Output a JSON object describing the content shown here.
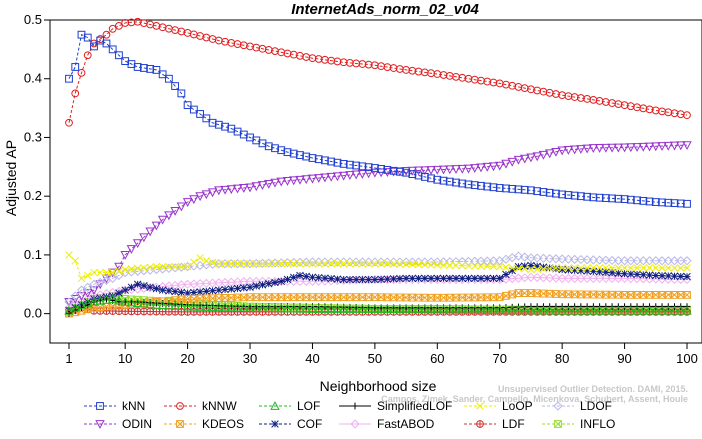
{
  "chart_data": {
    "type": "line",
    "title": "InternetAds_norm_02_v04",
    "xlabel": "Neighborhood size",
    "ylabel": "Adjusted AP",
    "xlim": [
      1,
      100
    ],
    "ylim": [
      -0.05,
      0.5
    ],
    "xticks": [
      1,
      10,
      20,
      30,
      40,
      50,
      60,
      70,
      80,
      90,
      100
    ],
    "xtick_labels": [
      "1",
      "10",
      "20",
      "30",
      "40",
      "50",
      "60",
      "70",
      "80",
      "90",
      "100"
    ],
    "yticks": [
      0.0,
      0.1,
      0.2,
      0.3,
      0.4,
      0.5
    ],
    "ytick_labels": [
      "0.0",
      "0.1",
      "0.2",
      "0.3",
      "0.4",
      "0.5"
    ],
    "grid": false,
    "legend_position": "bottom",
    "watermark": "Campos, Zimek, Sander, Campello, Micenková, Schubert, Assent, Houle: On the Evaluation of Unsupervised Outlier Detection. DAMI, 2015.",
    "watermark_line1": "Unsupervised Outlier Detection. DAMI, 2015.",
    "watermark_line2": "Campos, Zimek, Sander, Campello, Micenkova, Schubert, Assent, Houle",
    "series": [
      {
        "name": "kNN",
        "color": "#1f3fd0",
        "marker": "square",
        "dashed": true,
        "points": [
          [
            1,
            0.4
          ],
          [
            2,
            0.42
          ],
          [
            3,
            0.475
          ],
          [
            4,
            0.47
          ],
          [
            5,
            0.455
          ],
          [
            6,
            0.465
          ],
          [
            7,
            0.46
          ],
          [
            8,
            0.45
          ],
          [
            9,
            0.44
          ],
          [
            10,
            0.43
          ],
          [
            12,
            0.42
          ],
          [
            15,
            0.415
          ],
          [
            17,
            0.4
          ],
          [
            19,
            0.375
          ],
          [
            20,
            0.355
          ],
          [
            22,
            0.34
          ],
          [
            24,
            0.325
          ],
          [
            27,
            0.315
          ],
          [
            30,
            0.3
          ],
          [
            33,
            0.285
          ],
          [
            36,
            0.275
          ],
          [
            40,
            0.265
          ],
          [
            45,
            0.255
          ],
          [
            50,
            0.248
          ],
          [
            55,
            0.24
          ],
          [
            60,
            0.228
          ],
          [
            65,
            0.22
          ],
          [
            70,
            0.214
          ],
          [
            75,
            0.21
          ],
          [
            80,
            0.203
          ],
          [
            85,
            0.198
          ],
          [
            90,
            0.195
          ],
          [
            95,
            0.19
          ],
          [
            100,
            0.187
          ]
        ]
      },
      {
        "name": "kNNW",
        "color": "#e02020",
        "marker": "circle",
        "dashed": true,
        "points": [
          [
            1,
            0.325
          ],
          [
            2,
            0.375
          ],
          [
            3,
            0.41
          ],
          [
            4,
            0.44
          ],
          [
            5,
            0.46
          ],
          [
            7,
            0.475
          ],
          [
            8,
            0.485
          ],
          [
            9,
            0.49
          ],
          [
            10,
            0.495
          ],
          [
            12,
            0.497
          ],
          [
            15,
            0.49
          ],
          [
            20,
            0.478
          ],
          [
            25,
            0.465
          ],
          [
            30,
            0.455
          ],
          [
            35,
            0.445
          ],
          [
            40,
            0.435
          ],
          [
            45,
            0.428
          ],
          [
            50,
            0.423
          ],
          [
            55,
            0.415
          ],
          [
            60,
            0.408
          ],
          [
            65,
            0.4
          ],
          [
            70,
            0.392
          ],
          [
            75,
            0.382
          ],
          [
            80,
            0.372
          ],
          [
            85,
            0.364
          ],
          [
            90,
            0.355
          ],
          [
            95,
            0.346
          ],
          [
            100,
            0.338
          ]
        ]
      },
      {
        "name": "LOF",
        "color": "#22bb22",
        "marker": "triangle",
        "dashed": true,
        "points": [
          [
            1,
            0.005
          ],
          [
            3,
            0.015
          ],
          [
            5,
            0.02
          ],
          [
            8,
            0.025
          ],
          [
            10,
            0.02
          ],
          [
            15,
            0.015
          ],
          [
            20,
            0.012
          ],
          [
            30,
            0.01
          ],
          [
            40,
            0.008
          ],
          [
            50,
            0.008
          ],
          [
            60,
            0.007
          ],
          [
            70,
            0.006
          ],
          [
            80,
            0.005
          ],
          [
            90,
            0.005
          ],
          [
            100,
            0.005
          ]
        ]
      },
      {
        "name": "SimplifiedLOF",
        "color": "#000000",
        "marker": "plus",
        "dashed": false,
        "points": [
          [
            1,
            0.0
          ],
          [
            3,
            0.01
          ],
          [
            5,
            0.02
          ],
          [
            7,
            0.025
          ],
          [
            9,
            0.02
          ],
          [
            12,
            0.02
          ],
          [
            15,
            0.018
          ],
          [
            20,
            0.015
          ],
          [
            30,
            0.012
          ],
          [
            40,
            0.012
          ],
          [
            50,
            0.01
          ],
          [
            60,
            0.01
          ],
          [
            70,
            0.01
          ],
          [
            75,
            0.012
          ],
          [
            80,
            0.012
          ],
          [
            90,
            0.012
          ],
          [
            100,
            0.012
          ]
        ]
      },
      {
        "name": "LoOP",
        "color": "#eeee00",
        "marker": "x",
        "dashed": true,
        "points": [
          [
            1,
            0.1
          ],
          [
            2,
            0.09
          ],
          [
            3,
            0.06
          ],
          [
            5,
            0.07
          ],
          [
            8,
            0.07
          ],
          [
            10,
            0.075
          ],
          [
            15,
            0.08
          ],
          [
            20,
            0.08
          ],
          [
            22,
            0.095
          ],
          [
            23,
            0.09
          ],
          [
            25,
            0.085
          ],
          [
            30,
            0.085
          ],
          [
            40,
            0.085
          ],
          [
            50,
            0.085
          ],
          [
            60,
            0.083
          ],
          [
            70,
            0.08
          ],
          [
            75,
            0.075
          ],
          [
            80,
            0.078
          ],
          [
            90,
            0.078
          ],
          [
            100,
            0.078
          ]
        ]
      },
      {
        "name": "LDOF",
        "color": "#b8b8e8",
        "marker": "diamond",
        "dashed": true,
        "points": [
          [
            1,
            0.02
          ],
          [
            3,
            0.04
          ],
          [
            5,
            0.05
          ],
          [
            8,
            0.06
          ],
          [
            10,
            0.07
          ],
          [
            15,
            0.075
          ],
          [
            20,
            0.08
          ],
          [
            25,
            0.085
          ],
          [
            30,
            0.085
          ],
          [
            40,
            0.088
          ],
          [
            50,
            0.088
          ],
          [
            60,
            0.088
          ],
          [
            70,
            0.09
          ],
          [
            73,
            0.098
          ],
          [
            75,
            0.095
          ],
          [
            80,
            0.093
          ],
          [
            90,
            0.09
          ],
          [
            100,
            0.09
          ]
        ]
      },
      {
        "name": "ODIN",
        "color": "#9933cc",
        "marker": "triangle-down",
        "dashed": true,
        "points": [
          [
            1,
            0.02
          ],
          [
            3,
            0.03
          ],
          [
            5,
            0.04
          ],
          [
            7,
            0.06
          ],
          [
            9,
            0.08
          ],
          [
            10,
            0.1
          ],
          [
            12,
            0.12
          ],
          [
            14,
            0.14
          ],
          [
            16,
            0.16
          ],
          [
            18,
            0.175
          ],
          [
            20,
            0.19
          ],
          [
            22,
            0.2
          ],
          [
            25,
            0.21
          ],
          [
            30,
            0.215
          ],
          [
            35,
            0.225
          ],
          [
            40,
            0.23
          ],
          [
            45,
            0.235
          ],
          [
            50,
            0.24
          ],
          [
            55,
            0.243
          ],
          [
            60,
            0.245
          ],
          [
            65,
            0.247
          ],
          [
            70,
            0.252
          ],
          [
            73,
            0.262
          ],
          [
            76,
            0.268
          ],
          [
            80,
            0.278
          ],
          [
            85,
            0.282
          ],
          [
            90,
            0.283
          ],
          [
            95,
            0.285
          ],
          [
            100,
            0.287
          ]
        ]
      },
      {
        "name": "KDEOS",
        "color": "#f0a020",
        "marker": "square-x",
        "dashed": true,
        "points": [
          [
            1,
            0.0
          ],
          [
            5,
            0.01
          ],
          [
            10,
            0.015
          ],
          [
            15,
            0.02
          ],
          [
            20,
            0.025
          ],
          [
            30,
            0.028
          ],
          [
            40,
            0.028
          ],
          [
            50,
            0.028
          ],
          [
            60,
            0.027
          ],
          [
            70,
            0.028
          ],
          [
            73,
            0.035
          ],
          [
            75,
            0.035
          ],
          [
            80,
            0.033
          ],
          [
            90,
            0.032
          ],
          [
            100,
            0.032
          ]
        ]
      },
      {
        "name": "COF",
        "color": "#102080",
        "marker": "asterisk",
        "dashed": true,
        "points": [
          [
            1,
            0.005
          ],
          [
            3,
            0.015
          ],
          [
            5,
            0.025
          ],
          [
            8,
            0.03
          ],
          [
            10,
            0.04
          ],
          [
            12,
            0.05
          ],
          [
            14,
            0.045
          ],
          [
            16,
            0.04
          ],
          [
            20,
            0.035
          ],
          [
            25,
            0.04
          ],
          [
            30,
            0.045
          ],
          [
            35,
            0.055
          ],
          [
            38,
            0.065
          ],
          [
            40,
            0.062
          ],
          [
            45,
            0.058
          ],
          [
            50,
            0.058
          ],
          [
            55,
            0.06
          ],
          [
            60,
            0.06
          ],
          [
            65,
            0.06
          ],
          [
            70,
            0.06
          ],
          [
            73,
            0.08
          ],
          [
            75,
            0.082
          ],
          [
            80,
            0.075
          ],
          [
            85,
            0.072
          ],
          [
            90,
            0.068
          ],
          [
            95,
            0.065
          ],
          [
            100,
            0.063
          ]
        ]
      },
      {
        "name": "FastABOD",
        "color": "#f0b0f0",
        "marker": "diamond",
        "dashed": false,
        "points": [
          [
            1,
            0.01
          ],
          [
            5,
            0.03
          ],
          [
            10,
            0.04
          ],
          [
            15,
            0.045
          ],
          [
            20,
            0.05
          ],
          [
            30,
            0.055
          ],
          [
            40,
            0.055
          ],
          [
            50,
            0.058
          ],
          [
            60,
            0.058
          ],
          [
            70,
            0.058
          ],
          [
            75,
            0.062
          ],
          [
            80,
            0.06
          ],
          [
            90,
            0.06
          ],
          [
            100,
            0.058
          ]
        ]
      },
      {
        "name": "LDF",
        "color": "#cc3333",
        "marker": "circle-plus",
        "dashed": true,
        "points": [
          [
            1,
            0.005
          ],
          [
            3,
            0.01
          ],
          [
            5,
            0.005
          ],
          [
            10,
            0.004
          ],
          [
            20,
            0.003
          ],
          [
            40,
            0.003
          ],
          [
            60,
            0.003
          ],
          [
            80,
            0.003
          ],
          [
            100,
            0.003
          ]
        ]
      },
      {
        "name": "INFLO",
        "color": "#99dd33",
        "marker": "square-x",
        "dashed": true,
        "points": [
          [
            1,
            0.005
          ],
          [
            5,
            0.025
          ],
          [
            8,
            0.03
          ],
          [
            10,
            0.025
          ],
          [
            20,
            0.018
          ],
          [
            30,
            0.012
          ],
          [
            40,
            0.01
          ],
          [
            50,
            0.008
          ],
          [
            60,
            0.008
          ],
          [
            70,
            0.007
          ],
          [
            80,
            0.007
          ],
          [
            90,
            0.007
          ],
          [
            100,
            0.007
          ]
        ]
      }
    ],
    "legend_rows": [
      [
        "kNN",
        "kNNW",
        "LOF",
        "SimplifiedLOF",
        "LoOP",
        "LDOF"
      ],
      [
        "ODIN",
        "KDEOS",
        "COF",
        "FastABOD",
        "LDF",
        "INFLO"
      ]
    ]
  }
}
